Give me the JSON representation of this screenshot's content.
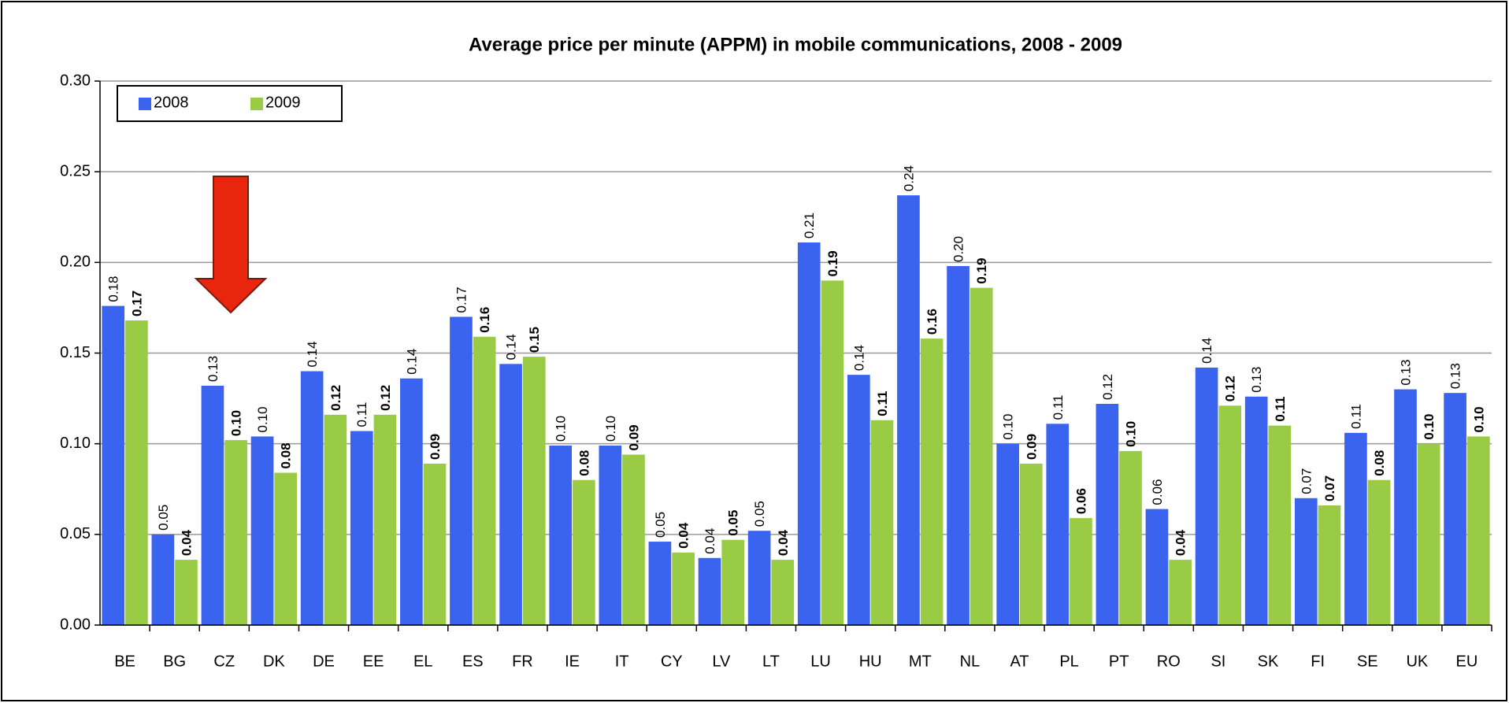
{
  "chart_data": {
    "type": "bar",
    "title": "Average price per minute (APPM) in mobile communications, 2008 - 2009",
    "categories": [
      "BE",
      "BG",
      "CZ",
      "DK",
      "DE",
      "EE",
      "EL",
      "ES",
      "FR",
      "IE",
      "IT",
      "CY",
      "LV",
      "LT",
      "LU",
      "HU",
      "MT",
      "NL",
      "AT",
      "PL",
      "PT",
      "RO",
      "SI",
      "SK",
      "FI",
      "SE",
      "UK",
      "EU"
    ],
    "series": [
      {
        "name": "2008",
        "color": "#3a63f0",
        "values": [
          0.176,
          0.05,
          0.132,
          0.104,
          0.14,
          0.107,
          0.136,
          0.17,
          0.144,
          0.099,
          0.099,
          0.046,
          0.037,
          0.052,
          0.211,
          0.138,
          0.237,
          0.198,
          0.1,
          0.111,
          0.122,
          0.064,
          0.142,
          0.126,
          0.07,
          0.106,
          0.13,
          0.128
        ],
        "value_labels": [
          "0.18",
          "0.05",
          "0.13",
          "0.10",
          "0.14",
          "0.11",
          "0.14",
          "0.17",
          "0.14",
          "0.10",
          "0.10",
          "0.05",
          "0.04",
          "0.05",
          "0.21",
          "0.14",
          "0.24",
          "0.20",
          "0.10",
          "0.11",
          "0.12",
          "0.06",
          "0.14",
          "0.13",
          "0.07",
          "0.11",
          "0.13",
          "0.13"
        ]
      },
      {
        "name": "2009",
        "color": "#99cc44",
        "values": [
          0.168,
          0.036,
          0.102,
          0.084,
          0.116,
          0.116,
          0.089,
          0.159,
          0.148,
          0.08,
          0.094,
          0.04,
          0.047,
          0.036,
          0.19,
          0.113,
          0.158,
          0.186,
          0.089,
          0.059,
          0.096,
          0.036,
          0.121,
          0.11,
          0.066,
          0.08,
          0.1,
          0.104
        ],
        "value_labels": [
          "0.17",
          "0.04",
          "0.10",
          "0.08",
          "0.12",
          "0.12",
          "0.09",
          "0.16",
          "0.15",
          "0.08",
          "0.09",
          "0.04",
          "0.05",
          "0.04",
          "0.19",
          "0.11",
          "0.16",
          "0.19",
          "0.09",
          "0.06",
          "0.10",
          "0.04",
          "0.12",
          "0.11",
          "0.07",
          "0.08",
          "0.10",
          "0.10"
        ]
      }
    ],
    "ylim": [
      0,
      0.3
    ],
    "yticks": [
      {
        "value": 0,
        "label": "0.00"
      },
      {
        "value": 0.05,
        "label": "0.05"
      },
      {
        "value": 0.1,
        "label": "0.10"
      },
      {
        "value": 0.15,
        "label": "0.15"
      },
      {
        "value": 0.2,
        "label": "0.20"
      },
      {
        "value": 0.25,
        "label": "0.25"
      },
      {
        "value": 0.3,
        "label": "0.30"
      }
    ],
    "grid": true,
    "legend": "upper left"
  }
}
